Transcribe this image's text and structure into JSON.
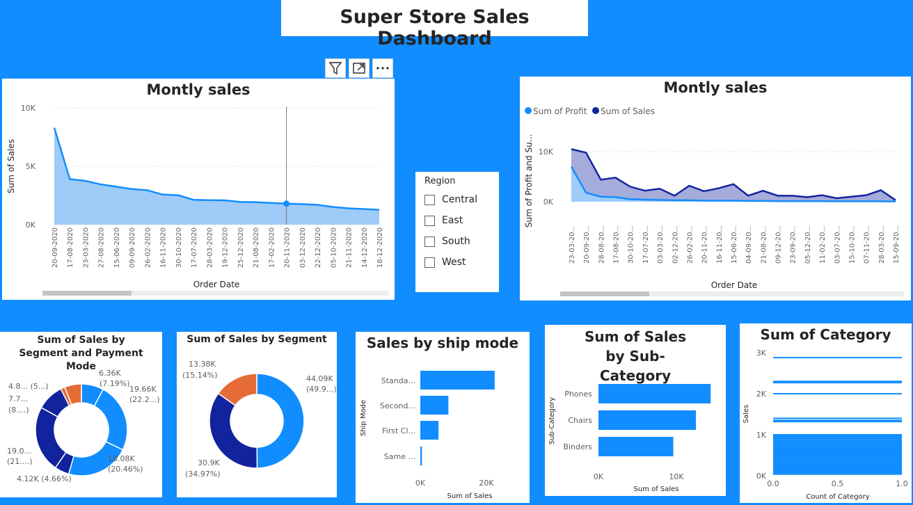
{
  "dashboard": {
    "title": "Super Store Sales Dashboard"
  },
  "toolbar": {
    "filter_icon": "filter-icon",
    "focus_icon": "focus-mode-icon",
    "more_icon": "more-options-icon"
  },
  "colors": {
    "background": "#118DFF",
    "blue": "#118DFF",
    "navy": "#12239E",
    "orange": "#E66C37",
    "area_light": "#9FCBF8"
  },
  "region_slicer": {
    "title": "Region",
    "options": [
      "Central",
      "East",
      "South",
      "West"
    ]
  },
  "charts": [
    {
      "id": "monthly-sales-1",
      "type": "area",
      "title": "Montly sales",
      "xlabel": "Order Date",
      "ylabel": "Sum of Sales",
      "ylim": [
        0,
        10000
      ],
      "yticks": [
        "0K",
        "5K",
        "10K"
      ],
      "categories": [
        "20-09-2020",
        "17-08-2020",
        "23-03-2020",
        "27-08-2020",
        "15-06-2020",
        "09-09-2020",
        "26-02-2020",
        "16-11-2020",
        "30-10-2020",
        "17-07-2020",
        "28-03-2020",
        "19-12-2020",
        "25-12-2020",
        "21-08-2020",
        "17-02-2020",
        "20-11-2020",
        "03-12-2020",
        "22-12-2020",
        "05-10-2020",
        "21-11-2020",
        "14-12-2020",
        "18-12-2020"
      ],
      "values": [
        8300,
        3900,
        3750,
        3450,
        3250,
        3050,
        2950,
        2580,
        2520,
        2130,
        2100,
        2080,
        1950,
        1930,
        1860,
        1800,
        1760,
        1700,
        1520,
        1400,
        1340,
        1270
      ],
      "highlight_index": 15
    },
    {
      "id": "monthly-sales-2",
      "type": "area",
      "title": "Montly sales",
      "xlabel": "Order Date",
      "ylabel": "Sum of Profit and Su...",
      "ylim": [
        0,
        14000
      ],
      "yticks": [
        "0K",
        "10K"
      ],
      "legend": [
        "Sum of Profit",
        "Sum of Sales"
      ],
      "categories": [
        "23-03-20...",
        "20-09-20...",
        "28-08-20...",
        "17-08-20...",
        "30-10-20...",
        "17-07-20...",
        "03-03-20...",
        "02-12-20...",
        "26-02-20...",
        "20-11-20...",
        "16-11-20...",
        "15-06-20...",
        "04-09-20...",
        "21-08-20...",
        "09-12-20...",
        "23-09-20...",
        "05-12-20...",
        "11-02-20...",
        "03-07-20...",
        "15-10-20...",
        "07-11-20...",
        "28-03-20...",
        "15-09-20..."
      ],
      "series": [
        {
          "name": "Sum of Sales",
          "values": [
            10500,
            9800,
            4400,
            4800,
            3000,
            2200,
            2600,
            1200,
            3200,
            2100,
            2700,
            3500,
            1200,
            2200,
            1200,
            1200,
            900,
            1300,
            700,
            1000,
            1300,
            2300,
            300
          ]
        },
        {
          "name": "Sum of Profit",
          "values": [
            7000,
            1800,
            1000,
            900,
            500,
            400,
            350,
            300,
            300,
            200,
            200,
            200,
            150,
            150,
            100,
            100,
            100,
            100,
            80,
            80,
            80,
            80,
            50
          ]
        }
      ]
    },
    {
      "id": "segment-payment-donut",
      "type": "pie",
      "title": "Sum of Sales by Segment and Payment Mode",
      "slices": [
        {
          "value": 6.36,
          "label": "6.36K",
          "pct": "(7.19%)",
          "color": "#118DFF"
        },
        {
          "value": 19.66,
          "label": "19.66K",
          "pct": "(22.2...)",
          "color": "#118DFF"
        },
        {
          "value": 18.08,
          "label": "18.08K",
          "pct": "(20.46%)",
          "color": "#118DFF"
        },
        {
          "value": 4.12,
          "label": "4.12K (4.66%)",
          "pct": "",
          "color": "#12239E"
        },
        {
          "value": 19.0,
          "label": "19.0...",
          "pct": "(21....)",
          "color": "#12239E"
        },
        {
          "value": 7.7,
          "label": "7.7...",
          "pct": "(8....)",
          "color": "#12239E"
        },
        {
          "value": 1.2,
          "label": "",
          "pct": "",
          "color": "#E66C37"
        },
        {
          "value": 4.8,
          "label": "4.8... (5...)",
          "pct": "",
          "color": "#E66C37"
        }
      ]
    },
    {
      "id": "segment-donut",
      "type": "pie",
      "title": "Sum of Sales by Segment",
      "slices": [
        {
          "value": 44.09,
          "label": "44.09K",
          "pct": "(49.9...)",
          "color": "#118DFF"
        },
        {
          "value": 30.9,
          "label": "30.9K",
          "pct": "(34.97%)",
          "color": "#12239E"
        },
        {
          "value": 13.38,
          "label": "13.38K",
          "pct": "(15.14%)",
          "color": "#E66C37"
        }
      ]
    },
    {
      "id": "ship-mode-bar",
      "type": "bar",
      "title": "Sales by ship mode",
      "xlabel": "Sum of Sales",
      "ylabel": "Ship Mode",
      "xlim": [
        0,
        25000
      ],
      "xticks": [
        "0K",
        "20K"
      ],
      "categories": [
        "Standa...",
        "Second...",
        "First Cl...",
        "Same ..."
      ],
      "values": [
        22500,
        8500,
        5500,
        500
      ]
    },
    {
      "id": "sub-category-bar",
      "type": "bar",
      "title": "Sum of Sales by Sub-Category",
      "xlabel": "Sum of Sales",
      "ylabel": "Sub-Category",
      "xlim": [
        0,
        16500
      ],
      "xticks": [
        "0K",
        "10K"
      ],
      "categories": [
        "Phones",
        "Chairs",
        "Binders"
      ],
      "values": [
        14400,
        12500,
        9600
      ]
    },
    {
      "id": "category-lines",
      "type": "bar",
      "title": "Sum of Category",
      "xlabel": "Count of Category",
      "ylabel": "Sales",
      "xlim": [
        0,
        1
      ],
      "ylim": [
        0,
        3000
      ],
      "xticks": [
        "0.0",
        "0.5",
        "1.0"
      ],
      "yticks": [
        "0K",
        "1K",
        "2K",
        "3K"
      ],
      "values": [
        2880,
        2300,
        2270,
        2000,
        1400,
        1350,
        1320,
        1000,
        970,
        940,
        910,
        880,
        850,
        820,
        790,
        760,
        730,
        700,
        670,
        640,
        610,
        580,
        550,
        520,
        490,
        460,
        430,
        400,
        370,
        340,
        310,
        280,
        250,
        220,
        190,
        160,
        130,
        100,
        70,
        40
      ]
    }
  ]
}
